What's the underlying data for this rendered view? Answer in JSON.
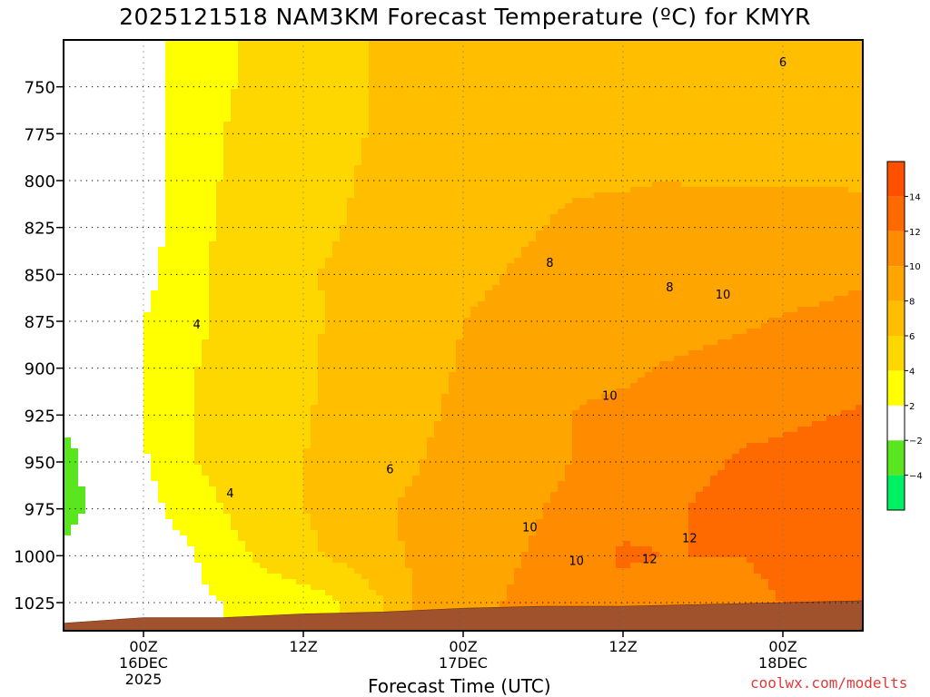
{
  "chart_data": {
    "type": "heatmap",
    "title": "2025121518 NAM3KM Forecast Temperature (ºC) for KMYR",
    "xlabel": "Forecast Time (UTC)",
    "ylabel": "",
    "y_axis": {
      "ticks": [
        750,
        775,
        800,
        825,
        850,
        875,
        900,
        925,
        950,
        975,
        1000,
        1025
      ],
      "labels": [
        "750",
        "775",
        "800",
        "825",
        "850",
        "875",
        "900",
        "925",
        "950",
        "975",
        "1000",
        "1025"
      ],
      "range": [
        725,
        1040
      ],
      "inverted": true,
      "unit": "hPa"
    },
    "x_axis": {
      "ticks": [
        {
          "t": 6,
          "line1": "00Z",
          "line2": "16DEC",
          "line3": "2025"
        },
        {
          "t": 18,
          "line1": "12Z",
          "line2": "",
          "line3": ""
        },
        {
          "t": 30,
          "line1": "00Z",
          "line2": "17DEC",
          "line3": ""
        },
        {
          "t": 42,
          "line1": "12Z",
          "line2": "",
          "line3": ""
        },
        {
          "t": 54,
          "line1": "00Z",
          "line2": "18DEC",
          "line3": ""
        }
      ],
      "range": [
        0,
        60
      ],
      "unit": "hours from 2025-12-15 18Z"
    },
    "grid": true,
    "colorbar": {
      "position": "right",
      "levels": [
        -6,
        -4,
        -2,
        2,
        4,
        6,
        8,
        10,
        12,
        14,
        16
      ],
      "tick_labels": [
        "−4",
        "−2",
        "2",
        "4",
        "6",
        "8",
        "10",
        "12",
        "14"
      ],
      "tick_values": [
        -4,
        -2,
        2,
        4,
        6,
        8,
        10,
        12,
        14
      ],
      "colors": [
        "#00f064",
        "#5ae61e",
        "#ffffff",
        "#ffff00",
        "#ffd700",
        "#ffbe00",
        "#ffa500",
        "#ff8c00",
        "#ff6a00",
        "#ff5000"
      ]
    },
    "temperature_grid": {
      "times": [
        0,
        3,
        6,
        9,
        12,
        15,
        18,
        21,
        24,
        27,
        30,
        33,
        36,
        39,
        42,
        45,
        48,
        51,
        54,
        57,
        60
      ],
      "pressures": [
        740,
        750,
        775,
        800,
        825,
        850,
        875,
        900,
        925,
        950,
        975,
        1000,
        1025
      ],
      "values": [
        [
          -2,
          0,
          1,
          3,
          3.8,
          4.5,
          5,
          5.5,
          6.2,
          6.8,
          7,
          7.2,
          7.5,
          7.5,
          7.4,
          7.2,
          7.1,
          7,
          6.8,
          6.5,
          6.4
        ],
        [
          -2,
          0,
          1,
          3,
          3.8,
          4.5,
          5,
          5.5,
          6.2,
          6.8,
          7,
          7.2,
          7.5,
          7.5,
          7.4,
          7.2,
          7.1,
          7,
          6.8,
          6.5,
          6.5
        ],
        [
          -2,
          0,
          1,
          3,
          4,
          4.6,
          5,
          5.6,
          6.3,
          7,
          7.2,
          7.4,
          7.6,
          7.7,
          7.6,
          7.5,
          7.4,
          7.3,
          7.2,
          7.1,
          7.1
        ],
        [
          -2,
          -0.5,
          1,
          3,
          4.1,
          4.8,
          5.2,
          5.8,
          6.5,
          7.2,
          7.4,
          7.7,
          7.8,
          7.9,
          7.9,
          8,
          7.9,
          7.9,
          7.9,
          7.9,
          7.8
        ],
        [
          -2,
          -0.5,
          1,
          3,
          4.3,
          5,
          5.5,
          6,
          6.6,
          7.3,
          7.6,
          7.9,
          8,
          8.2,
          8.3,
          8.5,
          8.5,
          8.5,
          8.6,
          8.7,
          8.6
        ],
        [
          -1.5,
          0,
          1.2,
          3.2,
          4.5,
          5.2,
          5.8,
          6.3,
          6.8,
          7.5,
          7.8,
          8,
          8.1,
          8.2,
          8.6,
          8.8,
          8.9,
          9.1,
          9.3,
          9.6,
          9.8
        ],
        [
          -1,
          0.5,
          2,
          3.5,
          4.3,
          5,
          5.5,
          6.5,
          7,
          7.6,
          8,
          8.2,
          8.3,
          8.6,
          8.9,
          9.2,
          9.5,
          9.8,
          10.1,
          10.3,
          10.5
        ],
        [
          -1,
          0.5,
          2,
          3.8,
          4.4,
          4.8,
          5.6,
          6.8,
          7.2,
          7.7,
          8.1,
          8.6,
          8.9,
          9.4,
          9.7,
          10.1,
          10.4,
          10.7,
          10.9,
          11.1,
          11.4
        ],
        [
          -1.5,
          0.2,
          2,
          3.8,
          4.8,
          5,
          5.8,
          6.6,
          7.1,
          7.8,
          8.3,
          9,
          9.6,
          10.2,
          10.4,
          10.6,
          10.9,
          11.3,
          11.6,
          11.9,
          12.2
        ],
        [
          -3,
          -0.5,
          1.8,
          3.6,
          4.7,
          5.5,
          6,
          6.5,
          7.3,
          8,
          8.6,
          9.1,
          9.6,
          10.2,
          10.6,
          11,
          11.6,
          12.3,
          12.6,
          12.8,
          13
        ],
        [
          -3.5,
          -0.5,
          1.2,
          2.8,
          4,
          5.5,
          6,
          6.7,
          7.8,
          8.5,
          9.2,
          9.6,
          10,
          10.4,
          11,
          11.6,
          12.3,
          12.8,
          13,
          12.6,
          12.5
        ],
        [
          -1,
          0.2,
          0.5,
          1.5,
          3,
          4.5,
          5.5,
          6.5,
          7.5,
          8.5,
          9.3,
          9.8,
          10.2,
          11,
          12.4,
          12,
          12,
          12,
          12.5,
          12.5,
          12.5
        ],
        [
          0,
          0.5,
          1,
          1.5,
          2,
          2.5,
          3,
          4,
          6,
          8.5,
          9.5,
          10,
          10.5,
          11,
          11,
          10.5,
          11,
          11.5,
          12,
          12,
          12
        ]
      ]
    },
    "ground_surface": {
      "color": "#a0522d",
      "times": [
        0,
        6,
        12,
        18,
        24,
        30,
        36,
        42,
        48,
        54,
        60
      ],
      "pressures": [
        1036,
        1033,
        1033,
        1031,
        1030,
        1028,
        1027,
        1027,
        1026,
        1025,
        1024
      ]
    },
    "contour_labels": [
      {
        "text": "4",
        "t": 10,
        "p": 877
      },
      {
        "text": "4",
        "t": 12.5,
        "p": 967
      },
      {
        "text": "6",
        "t": 24.5,
        "p": 954
      },
      {
        "text": "8",
        "t": 36.5,
        "p": 844
      },
      {
        "text": "8",
        "t": 45.5,
        "p": 857
      },
      {
        "text": "10",
        "t": 49.5,
        "p": 861
      },
      {
        "text": "10",
        "t": 41,
        "p": 915
      },
      {
        "text": "10",
        "t": 35,
        "p": 985
      },
      {
        "text": "10",
        "t": 38.5,
        "p": 1003
      },
      {
        "text": "12",
        "t": 47,
        "p": 991
      },
      {
        "text": "12",
        "t": 44,
        "p": 1002
      },
      {
        "text": "6",
        "t": 54,
        "p": 737
      }
    ]
  },
  "footer": {
    "xlabel_text": "Forecast Time (UTC)",
    "watermark": "coolwx.com/modelts"
  }
}
